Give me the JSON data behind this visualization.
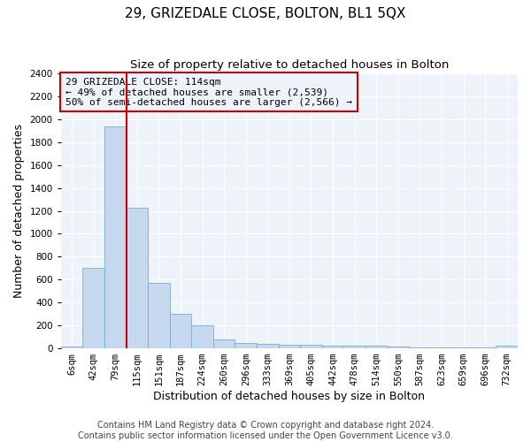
{
  "title": "29, GRIZEDALE CLOSE, BOLTON, BL1 5QX",
  "subtitle": "Size of property relative to detached houses in Bolton",
  "xlabel": "Distribution of detached houses by size in Bolton",
  "ylabel": "Number of detached properties",
  "categories": [
    "6sqm",
    "42sqm",
    "79sqm",
    "115sqm",
    "151sqm",
    "187sqm",
    "224sqm",
    "260sqm",
    "296sqm",
    "333sqm",
    "369sqm",
    "405sqm",
    "442sqm",
    "478sqm",
    "514sqm",
    "550sqm",
    "587sqm",
    "623sqm",
    "659sqm",
    "696sqm",
    "732sqm"
  ],
  "values": [
    15,
    700,
    1940,
    1230,
    570,
    305,
    200,
    80,
    45,
    38,
    35,
    30,
    25,
    20,
    20,
    18,
    5,
    5,
    5,
    5,
    20
  ],
  "bar_color": "#c5d8ee",
  "bar_edgecolor": "#7aaed0",
  "vline_color": "#cc0000",
  "annotation_text": "29 GRIZEDALE CLOSE: 114sqm\n← 49% of detached houses are smaller (2,539)\n50% of semi-detached houses are larger (2,566) →",
  "annotation_box_edgecolor": "#cc0000",
  "ylim": [
    0,
    2400
  ],
  "yticks": [
    0,
    200,
    400,
    600,
    800,
    1000,
    1200,
    1400,
    1600,
    1800,
    2000,
    2200,
    2400
  ],
  "bg_color": "#ffffff",
  "plot_bg_color": "#eef2f9",
  "grid_color": "#ffffff",
  "title_fontsize": 11,
  "subtitle_fontsize": 9.5,
  "axis_label_fontsize": 9,
  "tick_fontsize": 7.5,
  "footer_fontsize": 7,
  "footer1": "Contains HM Land Registry data © Crown copyright and database right 2024.",
  "footer2": "Contains public sector information licensed under the Open Government Licence v3.0."
}
